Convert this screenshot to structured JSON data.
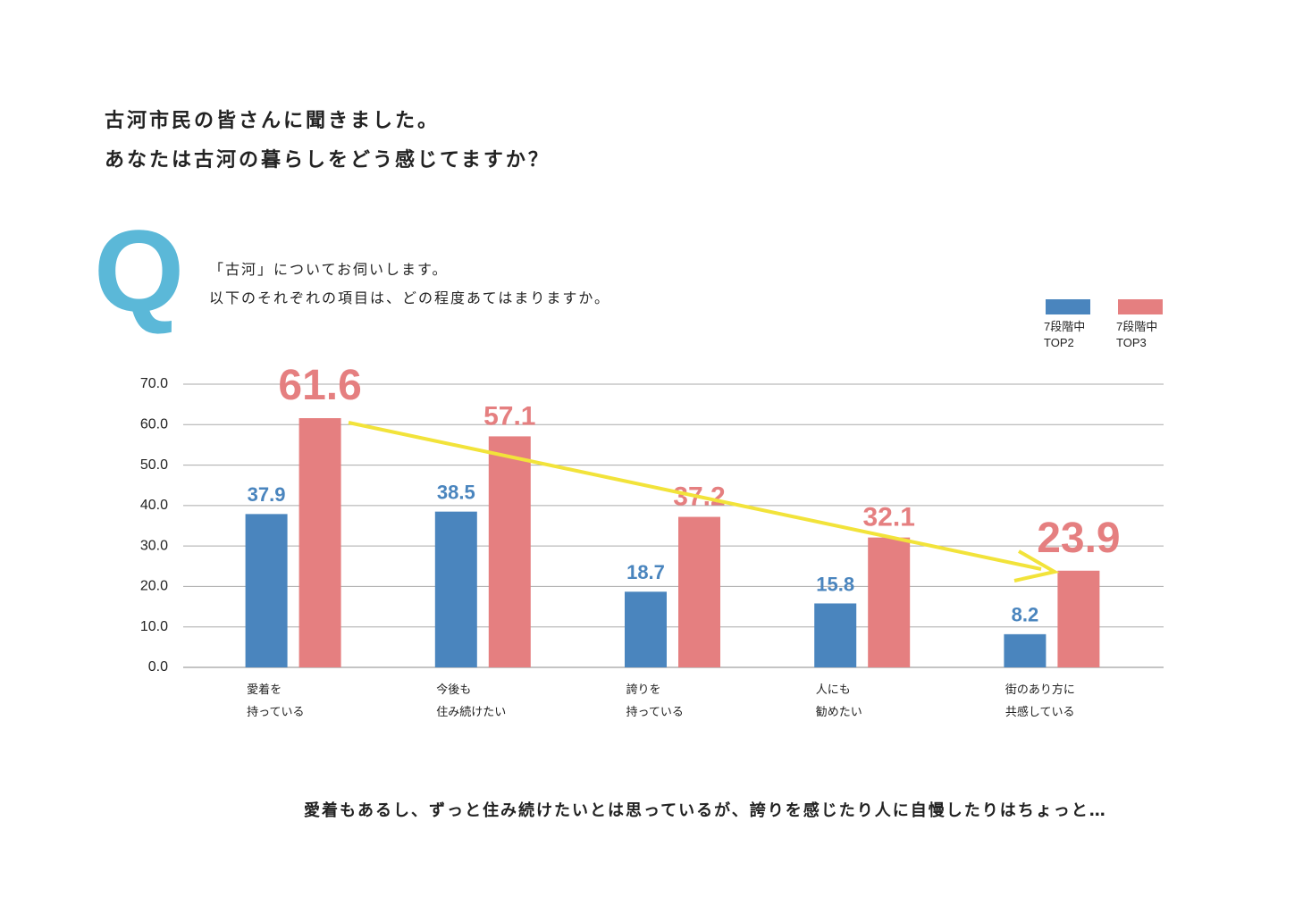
{
  "header": {
    "title": "古河市民の皆さんに聞きました。\nあなたは古河の暮らしをどう感じてますか？"
  },
  "question": {
    "label": "Q",
    "text": "「古河」についてお伺いします。\n以下のそれぞれの項目は、どの程度あてはまりますか。"
  },
  "chart_data": {
    "type": "bar",
    "categories": [
      "愛着を\n持っている",
      "今後も\n住み続けたい",
      "誇りを\n持っている",
      "人にも\n勧めたい",
      "街のあり方に\n共感している"
    ],
    "series": [
      {
        "name": "7段階中\nTOP2",
        "color": "#4a85be",
        "values": [
          37.9,
          38.5,
          18.7,
          15.8,
          8.2
        ]
      },
      {
        "name": "7段階中\nTOP3",
        "color": "#e57f80",
        "values": [
          61.6,
          57.1,
          37.2,
          32.1,
          23.9
        ]
      }
    ],
    "emphasized_categories": [
      0,
      4
    ],
    "ylim": [
      0,
      70
    ],
    "yticks": [
      {
        "value": 0,
        "label": "0.0"
      },
      {
        "value": 10,
        "label": "10.0"
      },
      {
        "value": 20,
        "label": "20.0"
      },
      {
        "value": 30,
        "label": "30.0"
      },
      {
        "value": 40,
        "label": "40.0"
      },
      {
        "value": 50,
        "label": "50.0"
      },
      {
        "value": 60,
        "label": "60.0"
      },
      {
        "value": 70,
        "label": "70.0"
      }
    ],
    "grid": true,
    "legend": "top-right"
  },
  "footer": {
    "text": "愛着もあるし、ずっと住み続けたいとは思っているが、誇りを感じたり人に自慢したりはちょっと…"
  }
}
